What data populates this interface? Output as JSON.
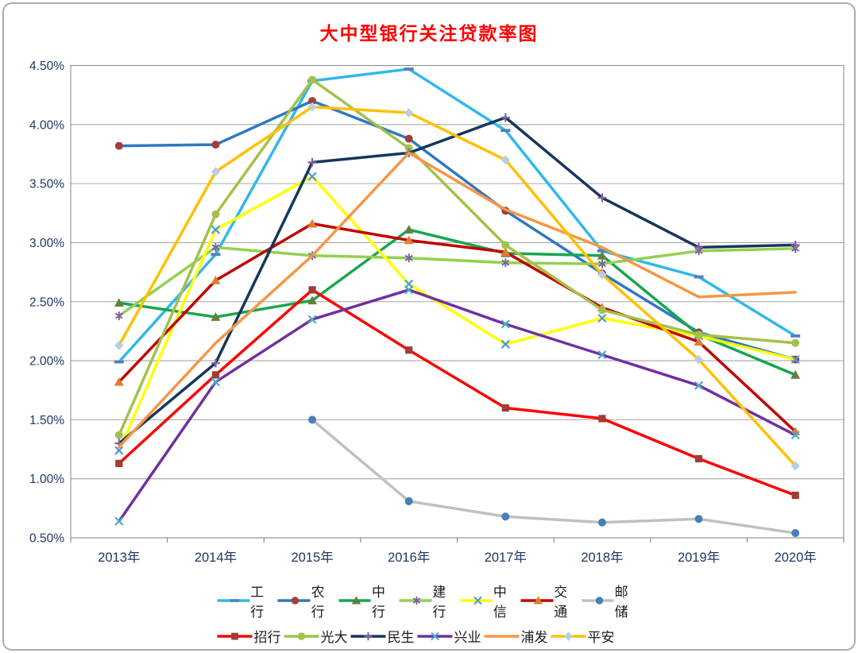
{
  "title": "大中型银行关注贷款率图",
  "title_color": "#FF0000",
  "chart_data": {
    "type": "line",
    "unit": "%",
    "categories": [
      "2013年",
      "2014年",
      "2015年",
      "2016年",
      "2017年",
      "2018年",
      "2019年",
      "2020年"
    ],
    "y_ticks": [
      "4.50%",
      "4.00%",
      "3.50%",
      "3.00%",
      "2.50%",
      "2.00%",
      "1.50%",
      "1.00%",
      "0.50%"
    ],
    "ylim": [
      0.5,
      4.5
    ],
    "grid": true,
    "legend_position": "bottom",
    "axis_label_color": "#1F3864",
    "series": [
      {
        "name": "工行",
        "color": "#30B8EA",
        "marker": "dash",
        "marker_color": "#4F81BD",
        "values": [
          1.99,
          2.9,
          4.37,
          4.47,
          3.95,
          2.93,
          2.71,
          2.21
        ]
      },
      {
        "name": "农行",
        "color": "#2E78C2",
        "marker": "circle",
        "marker_color": "#A04038",
        "values": [
          3.82,
          3.83,
          4.2,
          3.88,
          3.27,
          2.74,
          2.24,
          2.01
        ]
      },
      {
        "name": "中行",
        "color": "#17A64E",
        "marker": "triangle",
        "marker_color": "#60813B",
        "values": [
          2.49,
          2.37,
          2.51,
          3.11,
          2.91,
          2.89,
          2.22,
          1.88
        ]
      },
      {
        "name": "建行",
        "color": "#92D050",
        "marker": "asterisk",
        "marker_color": "#7A5BA5",
        "values": [
          2.38,
          2.96,
          2.89,
          2.87,
          2.83,
          2.82,
          2.93,
          2.95
        ]
      },
      {
        "name": "中信",
        "color": "#FFFF00",
        "marker": "x",
        "marker_color": "#4E9AD4",
        "values": [
          1.24,
          3.11,
          3.56,
          2.65,
          2.14,
          2.36,
          2.21,
          2.01
        ]
      },
      {
        "name": "交通",
        "color": "#C00000",
        "marker": "triangle",
        "marker_color": "#DD7E2D",
        "values": [
          1.82,
          2.68,
          3.16,
          3.02,
          2.92,
          2.45,
          2.16,
          1.4
        ]
      },
      {
        "name": "邮储",
        "color": "#C0C0C0",
        "marker": "circle",
        "marker_color": "#4A7EBB",
        "values": [
          null,
          null,
          1.5,
          0.81,
          0.68,
          0.63,
          0.66,
          0.54
        ]
      },
      {
        "name": "招行",
        "color": "#FE0000",
        "marker": "square",
        "marker_color": "#A13C37",
        "values": [
          1.13,
          1.88,
          2.6,
          2.09,
          1.6,
          1.51,
          1.17,
          0.86
        ]
      },
      {
        "name": "光大",
        "color": "#A3C14A",
        "marker": "circle",
        "marker_color": "#A3C14A",
        "values": [
          1.37,
          3.24,
          4.38,
          3.8,
          2.98,
          2.43,
          2.22,
          2.15
        ]
      },
      {
        "name": "民生",
        "color": "#16365C",
        "marker": "plus",
        "marker_color": "#8064A2",
        "values": [
          1.3,
          1.98,
          3.68,
          3.76,
          4.06,
          3.38,
          2.96,
          2.98
        ]
      },
      {
        "name": "兴业",
        "color": "#7030A0",
        "marker": "x",
        "marker_color": "#4BACC6",
        "values": [
          0.64,
          1.82,
          2.35,
          2.6,
          2.31,
          2.05,
          1.79,
          1.37
        ]
      },
      {
        "name": "浦发",
        "color": "#F79646",
        "marker": "none",
        "marker_color": "#F79646",
        "values": [
          1.27,
          2.15,
          2.89,
          3.76,
          3.28,
          2.96,
          2.54,
          2.58
        ]
      },
      {
        "name": "平安",
        "color": "#FFC000",
        "marker": "diamond",
        "marker_color": "#B9CDE5",
        "values": [
          2.13,
          3.6,
          4.15,
          4.1,
          3.7,
          2.73,
          2.01,
          1.11
        ]
      }
    ],
    "legend_rows": [
      [
        "工行",
        "农行",
        "中行",
        "建行",
        "中信",
        "交通",
        "邮储"
      ],
      [
        "招行",
        "光大",
        "民生",
        "兴业",
        "浦发",
        "平安"
      ]
    ]
  }
}
